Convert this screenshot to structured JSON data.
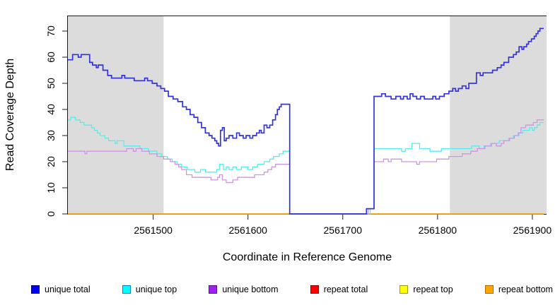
{
  "chart_data": {
    "type": "step-line",
    "title": "",
    "xlabel": "Coordinate in Reference Genome",
    "ylabel": "Read Coverage Depth",
    "x_ticks": [
      2561500,
      2561600,
      2561700,
      2561800,
      2561900
    ],
    "y_ticks": [
      0,
      10,
      20,
      30,
      40,
      50,
      60,
      70
    ],
    "xlim": [
      2561410,
      2561915
    ],
    "ylim": [
      0,
      76
    ],
    "x_end": 2561912,
    "grid": false,
    "shade_color": "#dcdcdc",
    "shaded_regions": [
      {
        "from": 2561410,
        "to": 2561511
      },
      {
        "from": 2561813,
        "to": 2561915
      }
    ],
    "series": [
      {
        "name": "repeat total",
        "color": "#e00000",
        "lw": 1.3,
        "points": [
          [
            2561410,
            0
          ],
          [
            2561912,
            0
          ]
        ]
      },
      {
        "name": "repeat top",
        "color": "#ffff00",
        "lw": 1.3,
        "points": [
          [
            2561410,
            0
          ],
          [
            2561912,
            0
          ]
        ]
      },
      {
        "name": "repeat bottom",
        "color": "#ffa500",
        "lw": 1.4,
        "points": [
          [
            2561410,
            0
          ],
          [
            2561912,
            0
          ]
        ]
      },
      {
        "name": "unique top",
        "color": "#55eded",
        "lw": 1.3,
        "points": [
          [
            2561410,
            36
          ],
          [
            2561413,
            37
          ],
          [
            2561418,
            36
          ],
          [
            2561423,
            35
          ],
          [
            2561427,
            34
          ],
          [
            2561435,
            33
          ],
          [
            2561438,
            32
          ],
          [
            2561441,
            31
          ],
          [
            2561444,
            30
          ],
          [
            2561449,
            29
          ],
          [
            2561453,
            28
          ],
          [
            2561460,
            27
          ],
          [
            2561462,
            28
          ],
          [
            2561469,
            26
          ],
          [
            2561486,
            25
          ],
          [
            2561495,
            24
          ],
          [
            2561504,
            23
          ],
          [
            2561509,
            22
          ],
          [
            2561515,
            21
          ],
          [
            2561520,
            20
          ],
          [
            2561525,
            19
          ],
          [
            2561530,
            18
          ],
          [
            2561536,
            17
          ],
          [
            2561544,
            16
          ],
          [
            2561550,
            17
          ],
          [
            2561555,
            16
          ],
          [
            2561567,
            17
          ],
          [
            2561570,
            19
          ],
          [
            2561574,
            17
          ],
          [
            2561577,
            18
          ],
          [
            2561580,
            17
          ],
          [
            2561584,
            18
          ],
          [
            2561588,
            17
          ],
          [
            2561593,
            18
          ],
          [
            2561600,
            17
          ],
          [
            2561605,
            18
          ],
          [
            2561610,
            19
          ],
          [
            2561617,
            20
          ],
          [
            2561623,
            21
          ],
          [
            2561627,
            22
          ],
          [
            2561633,
            23
          ],
          [
            2561637,
            24
          ],
          [
            2561644,
            0
          ],
          [
            2561729,
            2
          ],
          [
            2561733,
            25
          ],
          [
            2561762,
            24
          ],
          [
            2561766,
            25
          ],
          [
            2561773,
            27
          ],
          [
            2561781,
            25
          ],
          [
            2561792,
            24
          ],
          [
            2561804,
            25
          ],
          [
            2561836,
            26
          ],
          [
            2561844,
            25
          ],
          [
            2561849,
            26
          ],
          [
            2561856,
            27
          ],
          [
            2561865,
            28
          ],
          [
            2561875,
            29
          ],
          [
            2561880,
            30
          ],
          [
            2561886,
            31
          ],
          [
            2561890,
            32
          ],
          [
            2561897,
            33
          ],
          [
            2561900,
            32
          ],
          [
            2561902,
            33
          ],
          [
            2561905,
            34
          ],
          [
            2561908,
            35
          ],
          [
            2561912,
            35
          ]
        ]
      },
      {
        "name": "unique bottom",
        "color": "#cf94e2",
        "lw": 1.3,
        "points": [
          [
            2561410,
            24
          ],
          [
            2561428,
            23
          ],
          [
            2561430,
            24
          ],
          [
            2561472,
            25
          ],
          [
            2561479,
            24
          ],
          [
            2561482,
            25
          ],
          [
            2561488,
            24
          ],
          [
            2561496,
            23
          ],
          [
            2561504,
            22
          ],
          [
            2561511,
            21
          ],
          [
            2561518,
            20
          ],
          [
            2561523,
            19
          ],
          [
            2561527,
            18
          ],
          [
            2561530,
            17
          ],
          [
            2561535,
            15
          ],
          [
            2561541,
            14
          ],
          [
            2561561,
            13
          ],
          [
            2561568,
            14
          ],
          [
            2561570,
            15
          ],
          [
            2561573,
            13
          ],
          [
            2561577,
            12
          ],
          [
            2561584,
            13
          ],
          [
            2561589,
            14
          ],
          [
            2561607,
            15
          ],
          [
            2561617,
            16
          ],
          [
            2561621,
            17
          ],
          [
            2561625,
            18
          ],
          [
            2561629,
            19
          ],
          [
            2561644,
            0
          ],
          [
            2561727,
            2
          ],
          [
            2561733,
            20
          ],
          [
            2561743,
            21
          ],
          [
            2561748,
            20
          ],
          [
            2561751,
            21
          ],
          [
            2561762,
            20
          ],
          [
            2561778,
            19
          ],
          [
            2561781,
            20
          ],
          [
            2561799,
            21
          ],
          [
            2561812,
            22
          ],
          [
            2561826,
            23
          ],
          [
            2561835,
            24
          ],
          [
            2561842,
            25
          ],
          [
            2561850,
            26
          ],
          [
            2561857,
            27
          ],
          [
            2561862,
            26
          ],
          [
            2561867,
            27
          ],
          [
            2561870,
            28
          ],
          [
            2561876,
            29
          ],
          [
            2561881,
            30
          ],
          [
            2561885,
            31
          ],
          [
            2561888,
            33
          ],
          [
            2561893,
            34
          ],
          [
            2561901,
            35
          ],
          [
            2561905,
            36
          ],
          [
            2561912,
            36
          ]
        ]
      },
      {
        "name": "unique total",
        "color": "#3333dd",
        "lw": 1.7,
        "points": [
          [
            2561410,
            59
          ],
          [
            2561415,
            61
          ],
          [
            2561421,
            60
          ],
          [
            2561424,
            61
          ],
          [
            2561433,
            58
          ],
          [
            2561436,
            57
          ],
          [
            2561440,
            56
          ],
          [
            2561442,
            57
          ],
          [
            2561447,
            55
          ],
          [
            2561452,
            53
          ],
          [
            2561456,
            52
          ],
          [
            2561467,
            53
          ],
          [
            2561470,
            52
          ],
          [
            2561480,
            51
          ],
          [
            2561491,
            52
          ],
          [
            2561494,
            51
          ],
          [
            2561499,
            50
          ],
          [
            2561504,
            49
          ],
          [
            2561508,
            48
          ],
          [
            2561512,
            47
          ],
          [
            2561516,
            45
          ],
          [
            2561521,
            44
          ],
          [
            2561526,
            43
          ],
          [
            2561531,
            41
          ],
          [
            2561535,
            40
          ],
          [
            2561539,
            38
          ],
          [
            2561543,
            37
          ],
          [
            2561547,
            35
          ],
          [
            2561551,
            33
          ],
          [
            2561555,
            31
          ],
          [
            2561559,
            30
          ],
          [
            2561562,
            29
          ],
          [
            2561565,
            28
          ],
          [
            2561567,
            27
          ],
          [
            2561569,
            26
          ],
          [
            2561571,
            32
          ],
          [
            2561573,
            33
          ],
          [
            2561575,
            28
          ],
          [
            2561577,
            29
          ],
          [
            2561580,
            30
          ],
          [
            2561584,
            29
          ],
          [
            2561588,
            31
          ],
          [
            2561591,
            30
          ],
          [
            2561595,
            29
          ],
          [
            2561598,
            30
          ],
          [
            2561602,
            29
          ],
          [
            2561605,
            30
          ],
          [
            2561609,
            31
          ],
          [
            2561612,
            32
          ],
          [
            2561614,
            31
          ],
          [
            2561617,
            34
          ],
          [
            2561620,
            33
          ],
          [
            2561623,
            34
          ],
          [
            2561626,
            36
          ],
          [
            2561629,
            38
          ],
          [
            2561631,
            40
          ],
          [
            2561633,
            41
          ],
          [
            2561635,
            42
          ],
          [
            2561644,
            0
          ],
          [
            2561725,
            2
          ],
          [
            2561733,
            45
          ],
          [
            2561741,
            46
          ],
          [
            2561745,
            45
          ],
          [
            2561751,
            44
          ],
          [
            2561756,
            45
          ],
          [
            2561761,
            44
          ],
          [
            2561764,
            45
          ],
          [
            2561768,
            44
          ],
          [
            2561771,
            46
          ],
          [
            2561774,
            45
          ],
          [
            2561778,
            44
          ],
          [
            2561782,
            45
          ],
          [
            2561786,
            44
          ],
          [
            2561795,
            45
          ],
          [
            2561798,
            44
          ],
          [
            2561802,
            45
          ],
          [
            2561807,
            46
          ],
          [
            2561812,
            47
          ],
          [
            2561816,
            48
          ],
          [
            2561819,
            47
          ],
          [
            2561822,
            48
          ],
          [
            2561826,
            49
          ],
          [
            2561830,
            48
          ],
          [
            2561833,
            50
          ],
          [
            2561841,
            54
          ],
          [
            2561845,
            53
          ],
          [
            2561848,
            54
          ],
          [
            2561858,
            55
          ],
          [
            2561863,
            56
          ],
          [
            2561867,
            57
          ],
          [
            2561870,
            58
          ],
          [
            2561875,
            60
          ],
          [
            2561880,
            61
          ],
          [
            2561883,
            62
          ],
          [
            2561886,
            64
          ],
          [
            2561889,
            63
          ],
          [
            2561891,
            64
          ],
          [
            2561894,
            65
          ],
          [
            2561896,
            66
          ],
          [
            2561899,
            67
          ],
          [
            2561902,
            68
          ],
          [
            2561904,
            69
          ],
          [
            2561906,
            70
          ],
          [
            2561908,
            71
          ],
          [
            2561912,
            71
          ]
        ]
      }
    ]
  },
  "legend": {
    "items": [
      {
        "label": "unique total",
        "fill": "#0000f0",
        "border": "#000080"
      },
      {
        "label": "unique top",
        "fill": "#00ffff",
        "border": "#0082b4"
      },
      {
        "label": "unique bottom",
        "fill": "#a020f0",
        "border": "#5c0f91"
      },
      {
        "label": "repeat total",
        "fill": "#ff0000",
        "border": "#8b0000"
      },
      {
        "label": "repeat top",
        "fill": "#ffff00",
        "border": "#9b9b00"
      },
      {
        "label": "repeat bottom",
        "fill": "#ffa500",
        "border": "#a86a00"
      }
    ]
  }
}
